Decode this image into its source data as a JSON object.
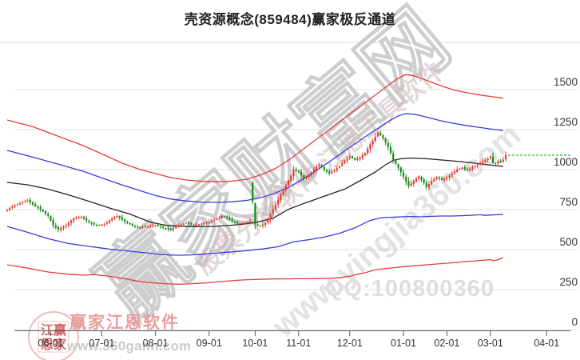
{
  "title": "壳资源概念(859484)赢家极反通道",
  "watermarks": {
    "main": "赢家财富网",
    "sub1": "股票分析软件 江恩工具软件",
    "sub2": "www.yingjia360.com",
    "qq": "QQ:100800360"
  },
  "logo": {
    "brand": "赢家江恩软件",
    "url": "www.360gann.com",
    "seal_line1": "江赢",
    "seal_line2": "恩家"
  },
  "colors": {
    "up": "#e23a2e",
    "down": "#168c16",
    "band_outer": "#e83c3c",
    "band_inner": "#3a3ae0",
    "band_mid": "#222222",
    "grid": "#e3e3e3",
    "separator": "#dddddd",
    "axis": "#555555",
    "label": "#333333",
    "ref_dash": "#00a000",
    "watermark_main_stroke": "#cccccc",
    "watermark_sub1": "#cfb8b8",
    "watermark_sub2": "#c9c9c9",
    "qq_text": "#dedede",
    "brand_pink": "#e89c9c",
    "url_gray": "#c9c9c9",
    "seal_red": "#cc4444",
    "seal_border": "#e6b0b0"
  },
  "chart_data": {
    "type": "candlestick",
    "title": "壳资源概念(859484)赢家极反通道",
    "ylim": [
      0,
      1750
    ],
    "y_gridline_values": [
      0,
      250,
      500,
      750,
      1000,
      1250,
      1500
    ],
    "y_ticks": [
      {
        "label": "1500",
        "value": 1500
      },
      {
        "label": "1250",
        "value": 1250
      },
      {
        "label": "1000",
        "value": 1000
      },
      {
        "label": "750",
        "value": 750
      },
      {
        "label": "500",
        "value": 500
      },
      {
        "label": "250",
        "value": 250
      },
      {
        "label": "0",
        "value": 0
      }
    ],
    "x_ticks": [
      {
        "label": "06-01",
        "day": 17
      },
      {
        "label": "07-01",
        "day": 37
      },
      {
        "label": "08-01",
        "day": 58
      },
      {
        "label": "09-01",
        "day": 79
      },
      {
        "label": "10-01",
        "day": 97
      },
      {
        "label": "11-01",
        "day": 114
      },
      {
        "label": "12-01",
        "day": 134
      },
      {
        "label": "01-01",
        "day": 155
      },
      {
        "label": "02-01",
        "day": 172
      },
      {
        "label": "03-01",
        "day": 189
      },
      {
        "label": "04-01",
        "day": 211
      }
    ],
    "num_candles": 196,
    "close_anchors": [
      [
        0,
        750
      ],
      [
        2,
        768
      ],
      [
        5,
        788
      ],
      [
        8,
        808
      ],
      [
        10,
        782
      ],
      [
        13,
        752
      ],
      [
        16,
        712
      ],
      [
        18,
        652
      ],
      [
        20,
        625
      ],
      [
        23,
        652
      ],
      [
        26,
        696
      ],
      [
        29,
        705
      ],
      [
        32,
        670
      ],
      [
        35,
        650
      ],
      [
        38,
        660
      ],
      [
        41,
        694
      ],
      [
        43,
        710
      ],
      [
        46,
        676
      ],
      [
        49,
        650
      ],
      [
        52,
        638
      ],
      [
        55,
        648
      ],
      [
        58,
        652
      ],
      [
        61,
        636
      ],
      [
        64,
        622
      ],
      [
        67,
        650
      ],
      [
        70,
        668
      ],
      [
        73,
        652
      ],
      [
        76,
        662
      ],
      [
        79,
        672
      ],
      [
        82,
        694
      ],
      [
        84,
        712
      ],
      [
        86,
        698
      ],
      [
        88,
        678
      ],
      [
        90,
        662
      ],
      [
        93,
        668
      ],
      [
        95,
        682
      ],
      [
        96,
        800
      ],
      [
        97,
        658
      ],
      [
        99,
        646
      ],
      [
        101,
        668
      ],
      [
        103,
        722
      ],
      [
        105,
        782
      ],
      [
        107,
        842
      ],
      [
        109,
        902
      ],
      [
        111,
        962
      ],
      [
        112,
        1000
      ],
      [
        114,
        985
      ],
      [
        116,
        945
      ],
      [
        118,
        962
      ],
      [
        120,
        1002
      ],
      [
        122,
        1032
      ],
      [
        124,
        1000
      ],
      [
        126,
        976
      ],
      [
        128,
        996
      ],
      [
        130,
        1022
      ],
      [
        132,
        1058
      ],
      [
        134,
        1082
      ],
      [
        136,
        1062
      ],
      [
        138,
        1076
      ],
      [
        140,
        1102
      ],
      [
        142,
        1158
      ],
      [
        144,
        1205
      ],
      [
        145,
        1232
      ],
      [
        147,
        1196
      ],
      [
        149,
        1142
      ],
      [
        151,
        1062
      ],
      [
        153,
        1012
      ],
      [
        155,
        956
      ],
      [
        157,
        898
      ],
      [
        159,
        930
      ],
      [
        161,
        958
      ],
      [
        163,
        918
      ],
      [
        164,
        890
      ],
      [
        166,
        930
      ],
      [
        168,
        952
      ],
      [
        170,
        936
      ],
      [
        172,
        950
      ],
      [
        174,
        976
      ],
      [
        176,
        1000
      ],
      [
        178,
        1012
      ],
      [
        180,
        996
      ],
      [
        182,
        1016
      ],
      [
        184,
        1032
      ],
      [
        186,
        1052
      ],
      [
        188,
        1068
      ],
      [
        189,
        1082
      ],
      [
        190,
        1042
      ],
      [
        191,
        1036
      ],
      [
        192,
        1052
      ],
      [
        193,
        1046
      ],
      [
        194,
        1062
      ],
      [
        195,
        1090
      ]
    ],
    "gap_opens": {
      "96": 920,
      "97": 790
    },
    "reference_line": {
      "value": 1090,
      "style": "dashed"
    },
    "bands": {
      "upper_outer": [
        [
          0,
          1310
        ],
        [
          10,
          1268
        ],
        [
          20,
          1208
        ],
        [
          30,
          1148
        ],
        [
          37,
          1098
        ],
        [
          45,
          1040
        ],
        [
          52,
          1000
        ],
        [
          58,
          975
        ],
        [
          64,
          950
        ],
        [
          70,
          935
        ],
        [
          76,
          927
        ],
        [
          82,
          924
        ],
        [
          88,
          928
        ],
        [
          94,
          940
        ],
        [
          100,
          972
        ],
        [
          105,
          1008
        ],
        [
          110,
          1058
        ],
        [
          115,
          1118
        ],
        [
          120,
          1178
        ],
        [
          125,
          1238
        ],
        [
          130,
          1298
        ],
        [
          135,
          1358
        ],
        [
          140,
          1418
        ],
        [
          145,
          1478
        ],
        [
          150,
          1538
        ],
        [
          153,
          1572
        ],
        [
          156,
          1594
        ],
        [
          159,
          1586
        ],
        [
          162,
          1570
        ],
        [
          165,
          1552
        ],
        [
          170,
          1522
        ],
        [
          175,
          1496
        ],
        [
          180,
          1480
        ],
        [
          185,
          1466
        ],
        [
          190,
          1455
        ],
        [
          194,
          1446
        ]
      ],
      "upper_inner": [
        [
          0,
          1120
        ],
        [
          10,
          1078
        ],
        [
          20,
          1034
        ],
        [
          30,
          988
        ],
        [
          37,
          948
        ],
        [
          45,
          904
        ],
        [
          52,
          868
        ],
        [
          58,
          838
        ],
        [
          64,
          816
        ],
        [
          70,
          804
        ],
        [
          76,
          797
        ],
        [
          82,
          795
        ],
        [
          88,
          799
        ],
        [
          94,
          808
        ],
        [
          100,
          828
        ],
        [
          105,
          854
        ],
        [
          110,
          888
        ],
        [
          115,
          934
        ],
        [
          120,
          984
        ],
        [
          125,
          1038
        ],
        [
          130,
          1094
        ],
        [
          135,
          1150
        ],
        [
          140,
          1205
        ],
        [
          145,
          1258
        ],
        [
          150,
          1310
        ],
        [
          153,
          1336
        ],
        [
          156,
          1350
        ],
        [
          159,
          1346
        ],
        [
          162,
          1336
        ],
        [
          166,
          1320
        ],
        [
          170,
          1304
        ],
        [
          175,
          1288
        ],
        [
          180,
          1274
        ],
        [
          185,
          1263
        ],
        [
          190,
          1252
        ],
        [
          194,
          1244
        ]
      ],
      "mid": [
        [
          0,
          920
        ],
        [
          8,
          905
        ],
        [
          16,
          878
        ],
        [
          24,
          842
        ],
        [
          32,
          802
        ],
        [
          40,
          760
        ],
        [
          48,
          722
        ],
        [
          56,
          672
        ],
        [
          62,
          652
        ],
        [
          68,
          646
        ],
        [
          74,
          644
        ],
        [
          80,
          645
        ],
        [
          86,
          650
        ],
        [
          92,
          658
        ],
        [
          98,
          672
        ],
        [
          104,
          696
        ],
        [
          110,
          752
        ],
        [
          116,
          788
        ],
        [
          122,
          822
        ],
        [
          126,
          845
        ],
        [
          132,
          878
        ],
        [
          138,
          930
        ],
        [
          144,
          985
        ],
        [
          148,
          1030
        ],
        [
          151,
          1058
        ],
        [
          154,
          1068
        ],
        [
          158,
          1072
        ],
        [
          164,
          1068
        ],
        [
          170,
          1060
        ],
        [
          176,
          1052
        ],
        [
          182,
          1042
        ],
        [
          188,
          1030
        ],
        [
          194,
          1020
        ]
      ],
      "lower_inner": [
        [
          0,
          645
        ],
        [
          8,
          608
        ],
        [
          16,
          568
        ],
        [
          24,
          538
        ],
        [
          32,
          520
        ],
        [
          40,
          503
        ],
        [
          48,
          490
        ],
        [
          56,
          477
        ],
        [
          60,
          470
        ],
        [
          64,
          466
        ],
        [
          68,
          465
        ],
        [
          72,
          467
        ],
        [
          76,
          471
        ],
        [
          82,
          478
        ],
        [
          88,
          486
        ],
        [
          94,
          494
        ],
        [
          100,
          504
        ],
        [
          106,
          518
        ],
        [
          112,
          548
        ],
        [
          118,
          562
        ],
        [
          124,
          578
        ],
        [
          130,
          602
        ],
        [
          136,
          636
        ],
        [
          142,
          682
        ],
        [
          146,
          698
        ],
        [
          150,
          702
        ],
        [
          154,
          705
        ],
        [
          158,
          707
        ],
        [
          162,
          705
        ],
        [
          166,
          708
        ],
        [
          170,
          710
        ],
        [
          174,
          710
        ],
        [
          178,
          712
        ],
        [
          182,
          715
        ],
        [
          185,
          718
        ],
        [
          187,
          714
        ],
        [
          190,
          717
        ],
        [
          194,
          720
        ]
      ],
      "lower_outer": [
        [
          0,
          405
        ],
        [
          8,
          384
        ],
        [
          16,
          360
        ],
        [
          24,
          346
        ],
        [
          30,
          340
        ],
        [
          34,
          344
        ],
        [
          38,
          337
        ],
        [
          42,
          328
        ],
        [
          46,
          318
        ],
        [
          50,
          306
        ],
        [
          54,
          297
        ],
        [
          58,
          291
        ],
        [
          62,
          287
        ],
        [
          66,
          284
        ],
        [
          70,
          285
        ],
        [
          74,
          288
        ],
        [
          78,
          292
        ],
        [
          82,
          298
        ],
        [
          86,
          303
        ],
        [
          90,
          308
        ],
        [
          94,
          312
        ],
        [
          98,
          314
        ],
        [
          102,
          316
        ],
        [
          106,
          317
        ],
        [
          110,
          317
        ],
        [
          114,
          318
        ],
        [
          118,
          318
        ],
        [
          122,
          319
        ],
        [
          126,
          320
        ],
        [
          130,
          324
        ],
        [
          134,
          334
        ],
        [
          137,
          346
        ],
        [
          140,
          355
        ],
        [
          143,
          370
        ],
        [
          147,
          380
        ],
        [
          152,
          388
        ],
        [
          156,
          394
        ],
        [
          160,
          400
        ],
        [
          164,
          405
        ],
        [
          168,
          410
        ],
        [
          172,
          415
        ],
        [
          176,
          420
        ],
        [
          179,
          425
        ],
        [
          182,
          428
        ],
        [
          185,
          432
        ],
        [
          188,
          436
        ],
        [
          189,
          438
        ],
        [
          190,
          430
        ],
        [
          192,
          436
        ],
        [
          194,
          450
        ]
      ]
    }
  }
}
